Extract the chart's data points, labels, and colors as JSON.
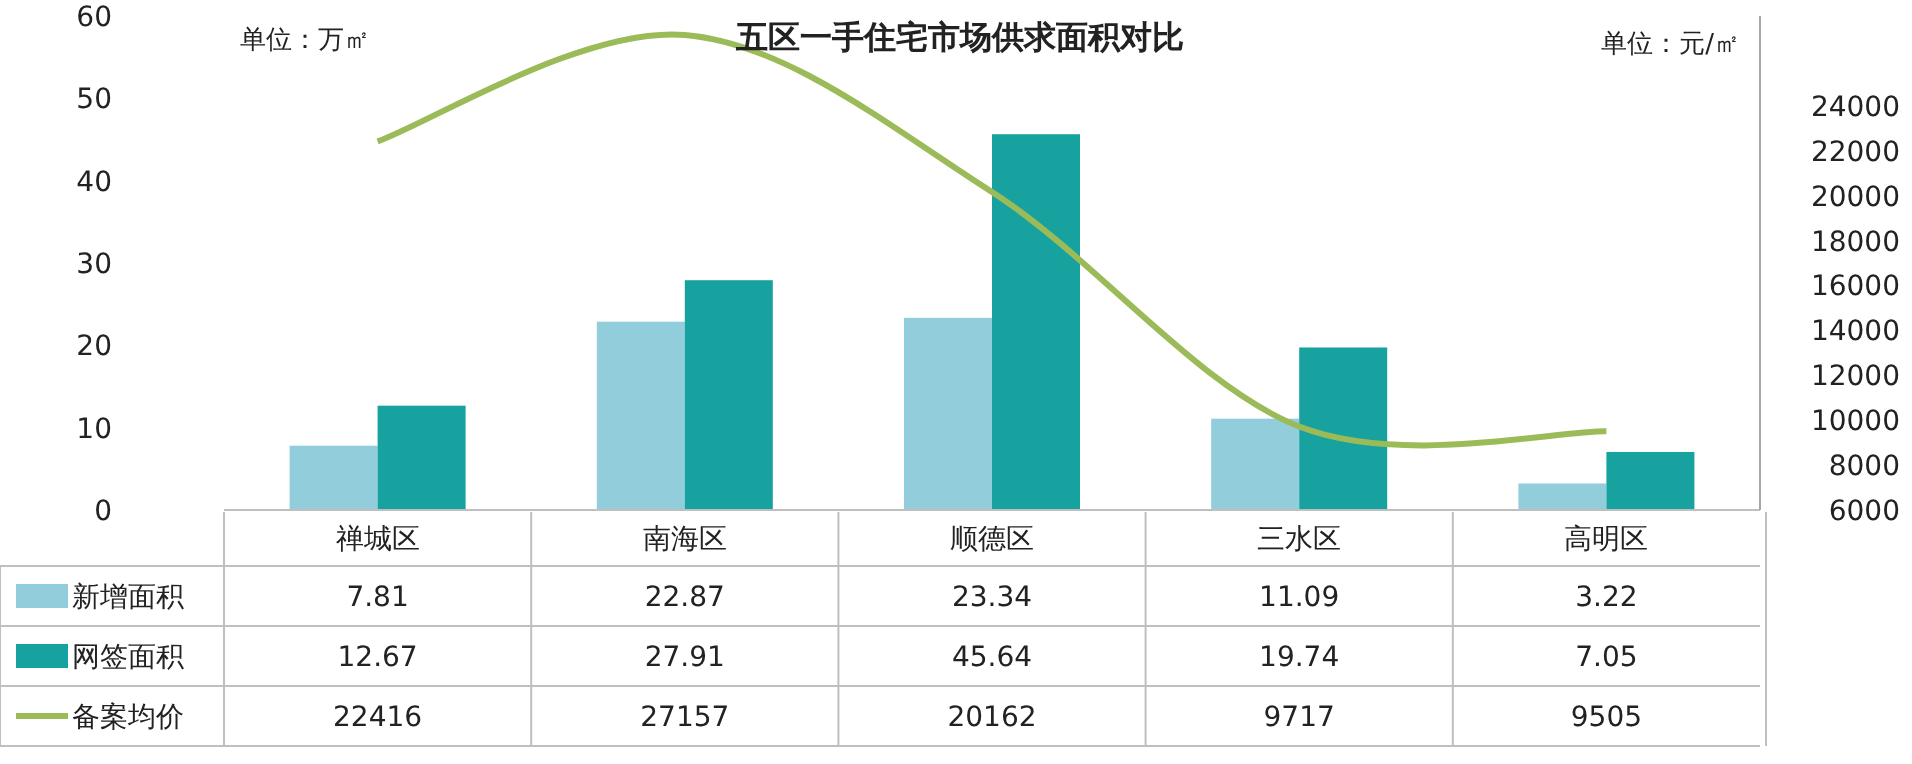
{
  "chart_data": {
    "type": "bar",
    "title": "五区一手住宅市场供求面积对比",
    "annotations": [
      "单位：万㎡",
      "单位：元/㎡"
    ],
    "categories": [
      "禅城区",
      "南海区",
      "顺德区",
      "三水区",
      "高明区"
    ],
    "series": [
      {
        "name": "新增面积",
        "color": "#92cddc",
        "values": [
          7.81,
          22.87,
          23.34,
          11.09,
          3.22
        ]
      },
      {
        "name": "网签面积",
        "color": "#17a2a0",
        "values": [
          12.67,
          27.91,
          45.64,
          19.74,
          7.05
        ]
      },
      {
        "name": "备案均价",
        "type": "line",
        "axis": "y2",
        "color": "#9bbb59",
        "values": [
          22416,
          27157,
          20162,
          9717,
          9505
        ]
      }
    ],
    "ylim": [
      0,
      60
    ],
    "yticks": [
      0,
      10,
      20,
      30,
      40,
      50,
      60
    ],
    "y2lim": [
      6000,
      28000
    ],
    "y2ticks": [
      6000,
      8000,
      10000,
      12000,
      14000,
      16000,
      18000,
      20000,
      22000,
      24000
    ],
    "data_labels": true,
    "legend": "bottom"
  }
}
